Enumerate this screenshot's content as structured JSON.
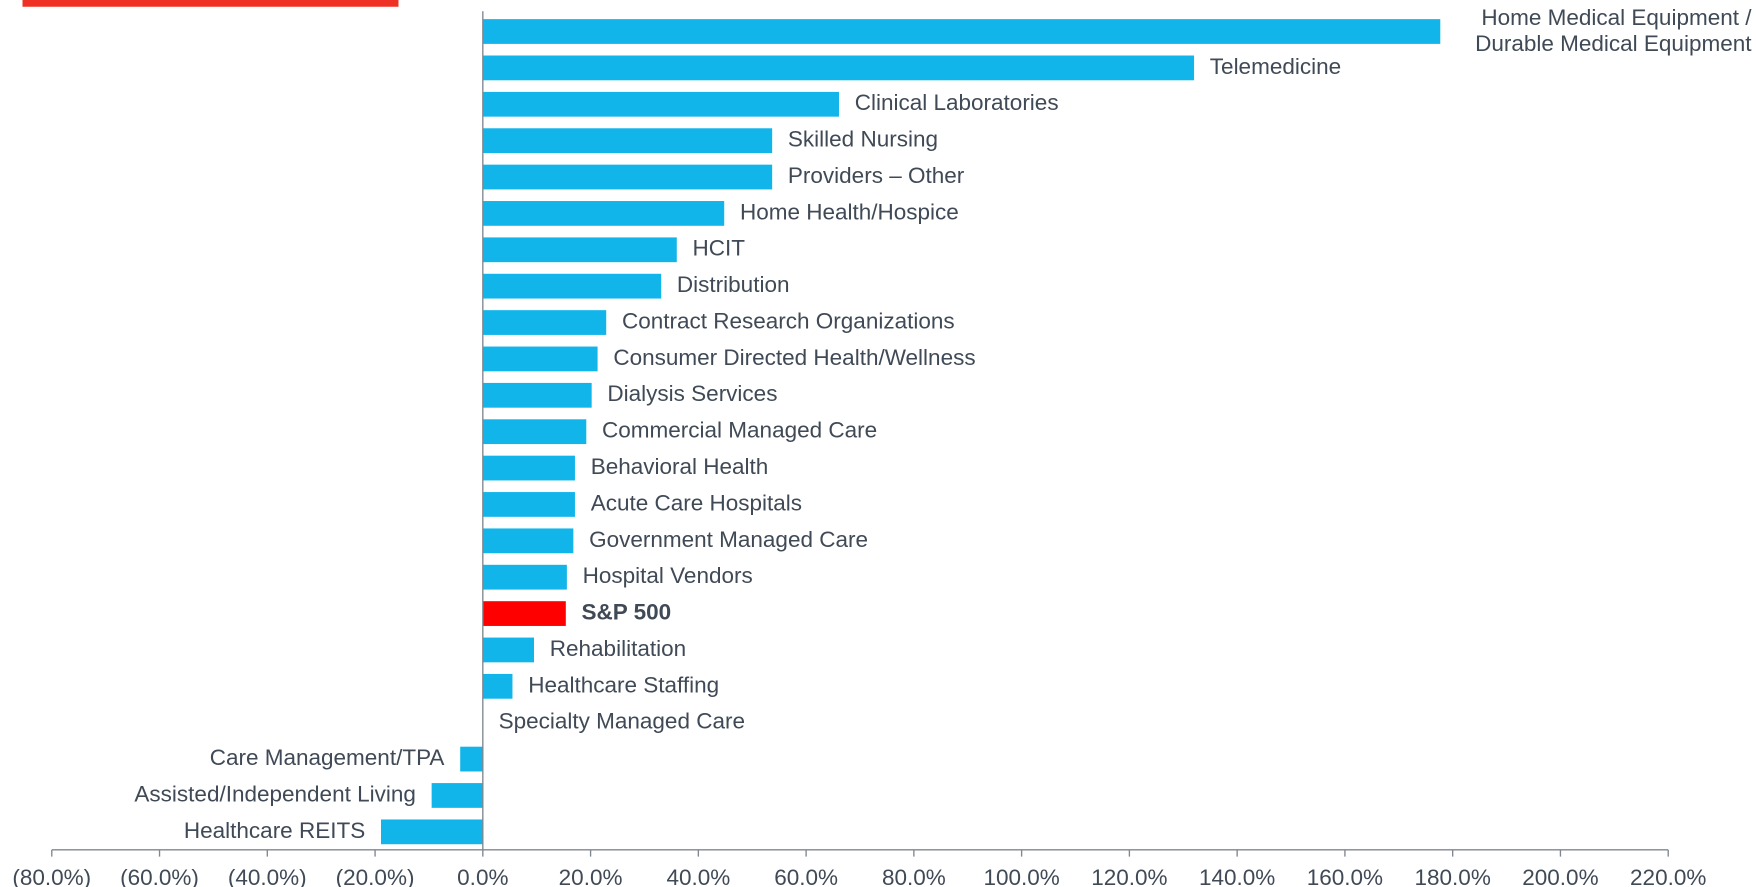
{
  "chart_data": {
    "type": "hbar",
    "categories": [
      "Home Medical Equipment / Durable Medical Equipment",
      "Telemedicine",
      "Clinical Laboratories",
      "Skilled Nursing",
      "Providers – Other",
      "Home Health/Hospice",
      "HCIT",
      "Distribution",
      "Contract Research Organizations",
      "Consumer Directed Health/Wellness",
      "Dialysis Services",
      "Commercial Managed Care",
      "Behavioral Health",
      "Acute Care Hospitals",
      "Government Managed Care",
      "Hospital Vendors",
      "S&P 500",
      "Rehabilitation",
      "Healthcare Staffing",
      "Specialty Managed Care",
      "Care Management/TPA",
      "Assisted/Independent Living",
      "Healthcare REITS"
    ],
    "values": [
      177.7,
      132.0,
      66.1,
      53.7,
      53.7,
      44.8,
      36.0,
      33.1,
      22.9,
      21.3,
      20.2,
      19.2,
      17.1,
      17.1,
      16.8,
      15.6,
      15.4,
      9.5,
      5.5,
      0,
      -4.2,
      -9.5,
      -18.9
    ],
    "colors": [
      "#12b5ea",
      "#12b5ea",
      "#12b5ea",
      "#12b5ea",
      "#12b5ea",
      "#12b5ea",
      "#12b5ea",
      "#12b5ea",
      "#12b5ea",
      "#12b5ea",
      "#12b5ea",
      "#12b5ea",
      "#12b5ea",
      "#12b5ea",
      "#12b5ea",
      "#12b5ea",
      "#ff0000",
      "#12b5ea",
      "#12b5ea",
      "#12b5ea",
      "#12b5ea",
      "#12b5ea",
      "#12b5ea"
    ],
    "xlim": [
      -80,
      220
    ],
    "xticks": [
      {
        "value": -80,
        "label": "(80.0%)"
      },
      {
        "value": -60,
        "label": "(60.0%)"
      },
      {
        "value": -40,
        "label": "(40.0%)"
      },
      {
        "value": -20,
        "label": "(20.0%)"
      },
      {
        "value": 0,
        "label": "0.0%"
      },
      {
        "value": 20,
        "label": "20.0%"
      },
      {
        "value": 40,
        "label": "40.0%"
      },
      {
        "value": 60,
        "label": "60.0%"
      },
      {
        "value": 80,
        "label": "80.0%"
      },
      {
        "value": 100,
        "label": "100.0%"
      },
      {
        "value": 120,
        "label": "120.0%"
      },
      {
        "value": 140,
        "label": "140.0%"
      },
      {
        "value": 160,
        "label": "160.0%"
      },
      {
        "value": 180,
        "label": "180.0%"
      },
      {
        "value": 200,
        "label": "200.0%"
      },
      {
        "value": 220,
        "label": "220.0%"
      }
    ]
  }
}
